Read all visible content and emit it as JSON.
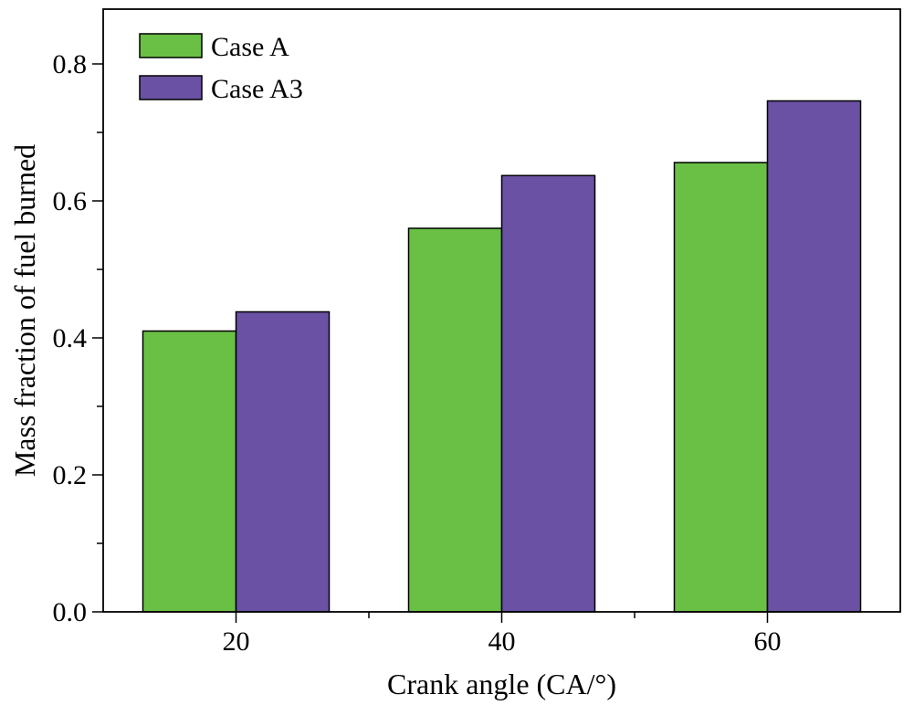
{
  "chart_data": {
    "type": "bar",
    "categories": [
      "20",
      "40",
      "60"
    ],
    "series": [
      {
        "name": "Case A",
        "values": [
          0.41,
          0.56,
          0.656
        ],
        "color": "#6abf45"
      },
      {
        "name": "Case A3",
        "values": [
          0.438,
          0.637,
          0.746
        ],
        "color": "#6a51a3"
      }
    ],
    "xlabel": "Crank angle (CA/°)",
    "ylabel": "Mass fraction of fuel burned",
    "ylim": [
      0,
      0.88
    ],
    "yticks": [
      0.0,
      0.2,
      0.4,
      0.6,
      0.8
    ],
    "ytick_labels": [
      "0.0",
      "0.2",
      "0.4",
      "0.6",
      "0.8"
    ],
    "legend_position": "top-left",
    "grid": false
  }
}
